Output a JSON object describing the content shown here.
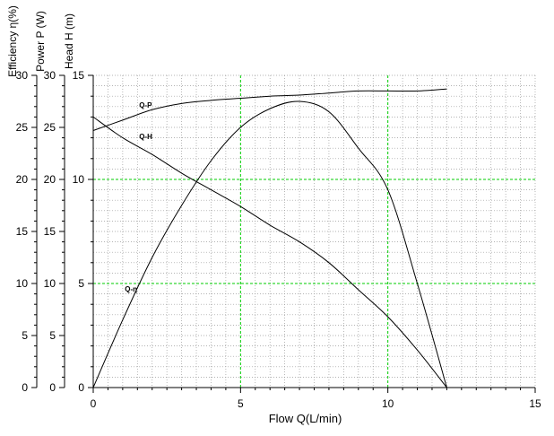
{
  "chart_data": {
    "type": "line",
    "title": "",
    "xlabel": "Flow Q(L/min)",
    "xlim": [
      0,
      15
    ],
    "x_ticks": [
      "0",
      "5",
      "10",
      "15"
    ],
    "grid": true,
    "legend": "none",
    "colors": {
      "curves": "#000000",
      "major_grid": "#00cc00",
      "minor_grid": "#9a9a9a",
      "axes": "#000000"
    },
    "y_axes": [
      {
        "label": "Efficiency η(%)",
        "lim": [
          0,
          30
        ],
        "ticks": [
          "0",
          "5",
          "10",
          "15",
          "20",
          "25",
          "30"
        ]
      },
      {
        "label": "Power P (W)",
        "lim": [
          0,
          30
        ],
        "ticks": [
          "0",
          "5",
          "10",
          "15",
          "20",
          "25",
          "30"
        ]
      },
      {
        "label": "Head H (m)",
        "lim": [
          0,
          15
        ],
        "ticks": [
          "0",
          "5",
          "10",
          "15"
        ]
      }
    ],
    "series": [
      {
        "name": "Q-P",
        "axis": 1,
        "x": [
          0,
          1,
          2,
          3,
          4,
          5,
          6,
          7,
          8,
          9,
          10,
          11,
          12
        ],
        "y": [
          24.7,
          25.7,
          26.7,
          27.3,
          27.6,
          27.8,
          28.0,
          28.1,
          28.3,
          28.5,
          28.5,
          28.5,
          28.7
        ]
      },
      {
        "name": "Q-H",
        "axis": 2,
        "x": [
          0,
          1,
          2,
          3,
          4,
          5,
          6,
          7,
          8,
          9,
          10,
          11,
          12
        ],
        "y": [
          13.0,
          12.0,
          11.2,
          10.3,
          9.5,
          8.7,
          7.8,
          7.0,
          6.0,
          4.7,
          3.4,
          1.8,
          0
        ]
      },
      {
        "name": "Q-η",
        "axis": 0,
        "x": [
          0,
          1,
          2,
          3,
          4,
          5,
          6,
          7,
          8,
          9,
          10,
          11,
          12
        ],
        "y": [
          0,
          6.5,
          12.5,
          17.5,
          21.8,
          25.0,
          26.8,
          27.5,
          26.5,
          23.0,
          19.0,
          10.0,
          0
        ]
      }
    ]
  }
}
